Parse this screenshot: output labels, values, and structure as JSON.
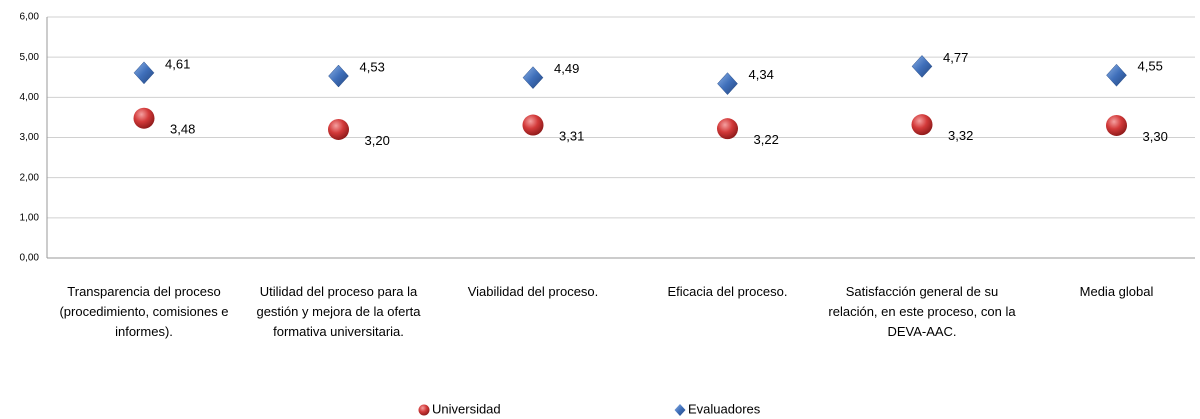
{
  "chart_data": {
    "type": "scatter",
    "categories": [
      "Transparencia del proceso (procedimiento, comisiones e informes).",
      "Utilidad del proceso para la gestión y mejora de la oferta formativa universitaria.",
      "Viabilidad del proceso.",
      "Eficacia del proceso.",
      "Satisfacción general de su relación, en este proceso, con la DEVA-AAC.",
      "Media global"
    ],
    "series": [
      {
        "name": "Universidad",
        "color": "#c0282d",
        "marker": "circle",
        "values": [
          3.48,
          3.2,
          3.31,
          3.22,
          3.32,
          3.3
        ],
        "value_labels": [
          "3,48",
          "3,20",
          "3,31",
          "3,22",
          "3,32",
          "3,30"
        ]
      },
      {
        "name": "Evaluadores",
        "color": "#3f6fba",
        "marker": "diamond",
        "values": [
          4.61,
          4.53,
          4.49,
          4.34,
          4.77,
          4.55
        ],
        "value_labels": [
          "4,61",
          "4,53",
          "4,49",
          "4,34",
          "4,77",
          "4,55"
        ]
      }
    ],
    "ylim": [
      0,
      6
    ],
    "yticks": [
      {
        "value": 0,
        "label": "0,00"
      },
      {
        "value": 1,
        "label": "1,00"
      },
      {
        "value": 2,
        "label": "2,00"
      },
      {
        "value": 3,
        "label": "3,00"
      },
      {
        "value": 4,
        "label": "4,00"
      },
      {
        "value": 5,
        "label": "5,00"
      },
      {
        "value": 6,
        "label": "6,00"
      }
    ],
    "grid": true,
    "legend": "bottom"
  }
}
